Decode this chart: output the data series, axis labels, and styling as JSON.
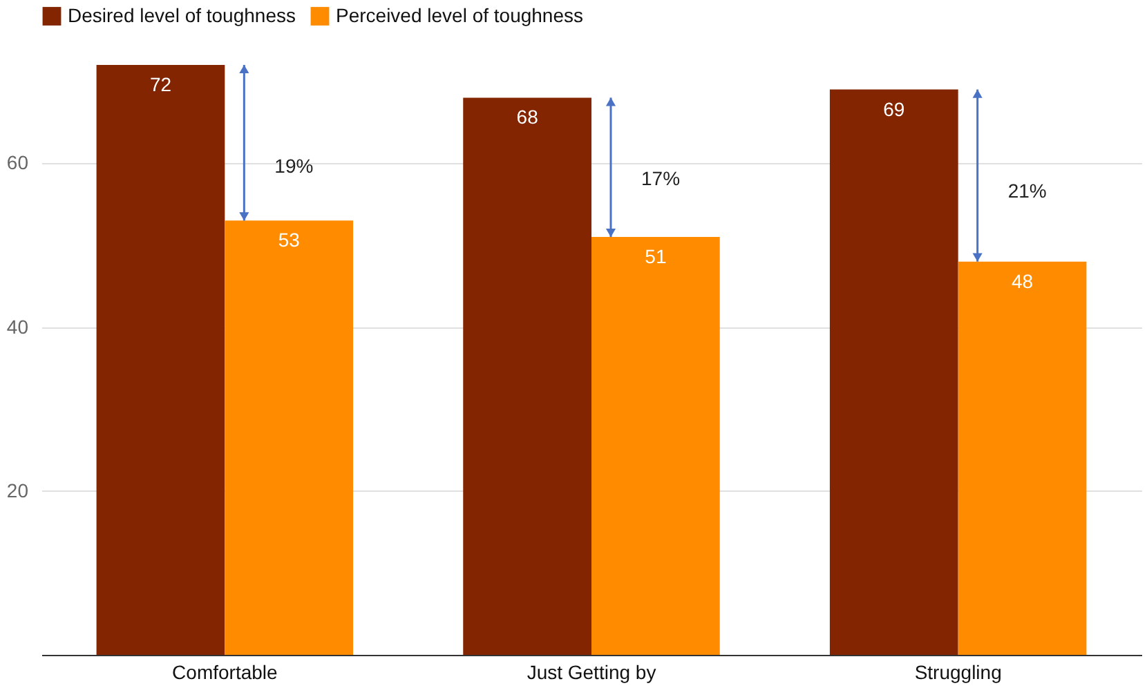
{
  "chart_data": {
    "type": "bar",
    "categories": [
      "Comfortable",
      "Just Getting by",
      "Struggling"
    ],
    "series": [
      {
        "name": "Desired level of toughness",
        "color": "#822500",
        "values": [
          72,
          68,
          69
        ]
      },
      {
        "name": "Perceived level of toughness",
        "color": "#ff8c00",
        "values": [
          53,
          51,
          48
        ]
      }
    ],
    "ylim": [
      0,
      72
    ],
    "yticks": [
      20,
      40,
      60
    ],
    "grid": "y",
    "legend": "top left",
    "data_labels": true,
    "annotations": [
      {
        "text": "19%",
        "x": "Comfortable",
        "y": 59.5
      },
      {
        "text": "17%",
        "x": "Just Getting by",
        "y": 58
      },
      {
        "text": "21%",
        "x": "Struggling",
        "y": 56.5
      }
    ]
  }
}
